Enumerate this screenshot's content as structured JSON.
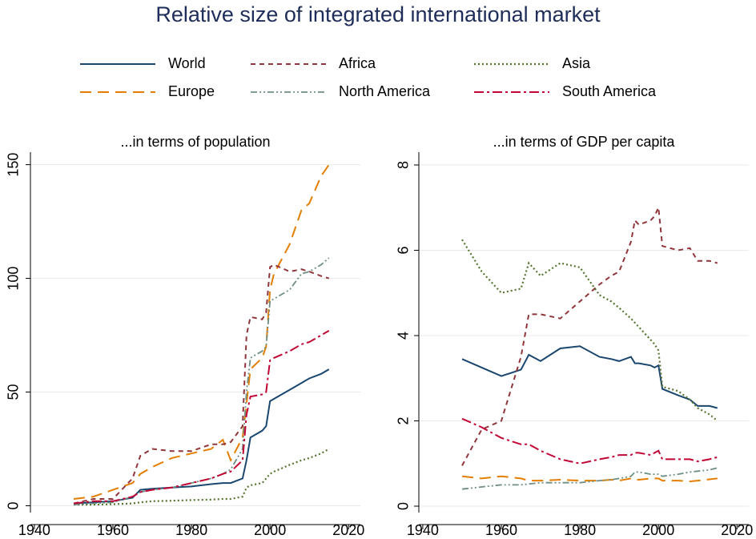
{
  "title": "Relative size of integrated international market",
  "chart_data": [
    {
      "type": "line",
      "title": "...in terms of population",
      "x": [
        1950,
        1955,
        1960,
        1965,
        1967,
        1970,
        1975,
        1980,
        1985,
        1988,
        1990,
        1993,
        1994,
        1995,
        1998,
        1999,
        2000,
        2001,
        2005,
        2008,
        2010,
        2013,
        2015
      ],
      "xlim": [
        1939,
        2023
      ],
      "xticks": [
        1940,
        1960,
        1980,
        2000,
        2020
      ],
      "ylim": [
        -3,
        155.5
      ],
      "yticks": [
        0,
        50,
        100,
        150
      ],
      "grid": true,
      "series": [
        {
          "name": "World",
          "color": "#1a476f",
          "values": [
            1,
            1.5,
            2,
            3.5,
            7,
            7.5,
            8,
            8.5,
            9.5,
            10,
            10,
            12,
            20,
            30,
            33,
            35,
            46,
            47,
            51,
            54,
            56,
            58,
            60
          ]
        },
        {
          "name": "Europe",
          "color": "#e37e00",
          "values": [
            3,
            4,
            7,
            10,
            14,
            17,
            21,
            23,
            25,
            29,
            20,
            30,
            45,
            60,
            65,
            70,
            95,
            102,
            115,
            130,
            133,
            145,
            150
          ]
        },
        {
          "name": "Africa",
          "color": "#90353b",
          "values": [
            1,
            3,
            3,
            12,
            22,
            25,
            24,
            24,
            27,
            27,
            28,
            35,
            75,
            83,
            82,
            85,
            105,
            106,
            103,
            104,
            103,
            101,
            100
          ]
        },
        {
          "name": "Asia",
          "color": "#55752f",
          "values": [
            0.5,
            0.5,
            0.7,
            1,
            1.5,
            2,
            2.2,
            2.5,
            2.7,
            3,
            3,
            4,
            8,
            9,
            10,
            12,
            14,
            15,
            18,
            20,
            21,
            23,
            25
          ]
        },
        {
          "name": "North America",
          "color": "#6e8e84",
          "values": [
            0.5,
            1,
            1.5,
            4,
            6,
            7,
            8,
            10,
            12,
            14,
            16,
            25,
            50,
            65,
            68,
            70,
            90,
            91,
            95,
            102,
            103,
            106,
            109
          ]
        },
        {
          "name": "South America",
          "color": "#c10534",
          "values": [
            1,
            2,
            2,
            4,
            6,
            7,
            8,
            10,
            12,
            14,
            15,
            20,
            40,
            48,
            49,
            50,
            64,
            65,
            68,
            71,
            72,
            75,
            77
          ]
        }
      ]
    },
    {
      "type": "line",
      "title": "...in terms of GDP per capita",
      "x": [
        1950,
        1955,
        1960,
        1965,
        1967,
        1970,
        1975,
        1980,
        1985,
        1988,
        1990,
        1993,
        1994,
        1995,
        1998,
        1999,
        2000,
        2001,
        2005,
        2008,
        2010,
        2013,
        2015
      ],
      "xlim": [
        1939,
        2023
      ],
      "xticks": [
        1940,
        1960,
        1980,
        2000,
        2020
      ],
      "ylim": [
        -0.15,
        8.3
      ],
      "yticks": [
        0,
        2,
        4,
        6,
        8
      ],
      "grid": true,
      "series": [
        {
          "name": "World",
          "color": "#1a476f",
          "values": [
            3.45,
            3.25,
            3.05,
            3.2,
            3.55,
            3.4,
            3.7,
            3.75,
            3.5,
            3.45,
            3.4,
            3.5,
            3.35,
            3.35,
            3.3,
            3.25,
            3.3,
            2.75,
            2.6,
            2.5,
            2.35,
            2.35,
            2.3
          ]
        },
        {
          "name": "Europe",
          "color": "#e37e00",
          "values": [
            0.7,
            0.65,
            0.7,
            0.65,
            0.6,
            0.6,
            0.62,
            0.6,
            0.6,
            0.62,
            0.6,
            0.65,
            0.62,
            0.62,
            0.65,
            0.65,
            0.65,
            0.6,
            0.6,
            0.58,
            0.6,
            0.63,
            0.65
          ]
        },
        {
          "name": "Africa",
          "color": "#90353b",
          "values": [
            0.95,
            1.8,
            2,
            3.5,
            4.5,
            4.5,
            4.4,
            4.8,
            5.2,
            5.4,
            5.5,
            6.2,
            6.7,
            6.6,
            6.7,
            6.8,
            7,
            6.1,
            6,
            6.05,
            5.75,
            5.75,
            5.7
          ]
        },
        {
          "name": "Asia",
          "color": "#55752f",
          "values": [
            6.25,
            5.5,
            5,
            5.1,
            5.7,
            5.4,
            5.7,
            5.6,
            4.95,
            4.8,
            4.65,
            4.4,
            4.3,
            4.2,
            3.9,
            3.8,
            3.65,
            2.8,
            2.7,
            2.5,
            2.3,
            2.15,
            2.0
          ]
        },
        {
          "name": "North America",
          "color": "#6e8e84",
          "values": [
            0.4,
            0.45,
            0.5,
            0.5,
            0.52,
            0.55,
            0.55,
            0.55,
            0.6,
            0.62,
            0.65,
            0.7,
            0.8,
            0.8,
            0.75,
            0.75,
            0.75,
            0.7,
            0.75,
            0.8,
            0.82,
            0.85,
            0.9
          ]
        },
        {
          "name": "South America",
          "color": "#c10534",
          "values": [
            2.05,
            1.85,
            1.6,
            1.45,
            1.45,
            1.3,
            1.1,
            1.0,
            1.1,
            1.15,
            1.2,
            1.2,
            1.25,
            1.25,
            1.2,
            1.25,
            1.3,
            1.1,
            1.1,
            1.1,
            1.05,
            1.1,
            1.15
          ]
        }
      ]
    }
  ]
}
